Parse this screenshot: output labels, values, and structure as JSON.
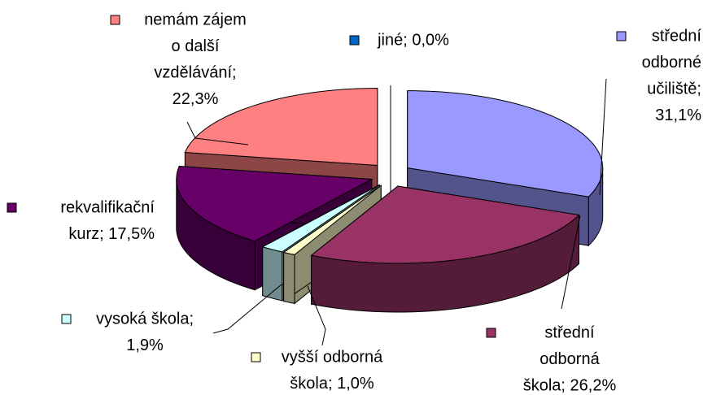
{
  "chart_data": {
    "type": "pie3d",
    "values": [
      31.1,
      26.2,
      1.0,
      1.9,
      17.5,
      22.3,
      0.0
    ],
    "value_labels": [
      [
        "střední",
        "odborné",
        "učiliště;",
        "31,1%"
      ],
      [
        "střední",
        "odborná",
        "škola; 26,2%"
      ],
      [
        "vyšší odborná",
        "škola; 1,0%"
      ],
      [
        "vysoká škola;",
        "1,9%"
      ],
      [
        "rekvalifikační",
        "kurz; 17,5%"
      ],
      [
        "nemám zájem",
        "o další",
        "vzdělávání;",
        "22,3%"
      ],
      [
        "jiné; 0,0%"
      ]
    ],
    "colors": [
      "#9999ff",
      "#993366",
      "#ffffcc",
      "#ccffff",
      "#660066",
      "#ff8080",
      "#0066cc"
    ]
  }
}
